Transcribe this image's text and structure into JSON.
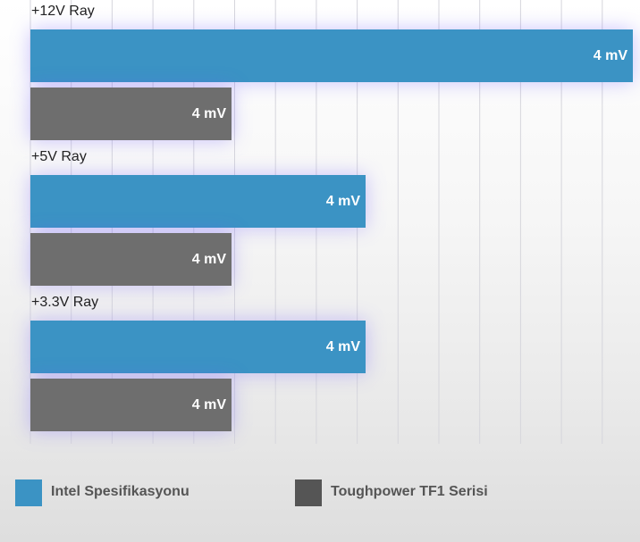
{
  "groups": [
    {
      "label": "+12V Ray",
      "bars": [
        {
          "series": 0,
          "label": "4 mV"
        },
        {
          "series": 1,
          "label": "4 mV"
        }
      ]
    },
    {
      "label": "+5V Ray",
      "bars": [
        {
          "series": 0,
          "label": "4 mV"
        },
        {
          "series": 1,
          "label": "4 mV"
        }
      ]
    },
    {
      "label": "+3.3V Ray",
      "bars": [
        {
          "series": 0,
          "label": "4 mV"
        },
        {
          "series": 1,
          "label": "4 mV"
        }
      ]
    }
  ],
  "legend": [
    {
      "label": "Intel Spesifikasyonu",
      "color": "#3b93c4"
    },
    {
      "label": "Toughpower TF1 Serisi",
      "color": "#555555"
    }
  ]
}
